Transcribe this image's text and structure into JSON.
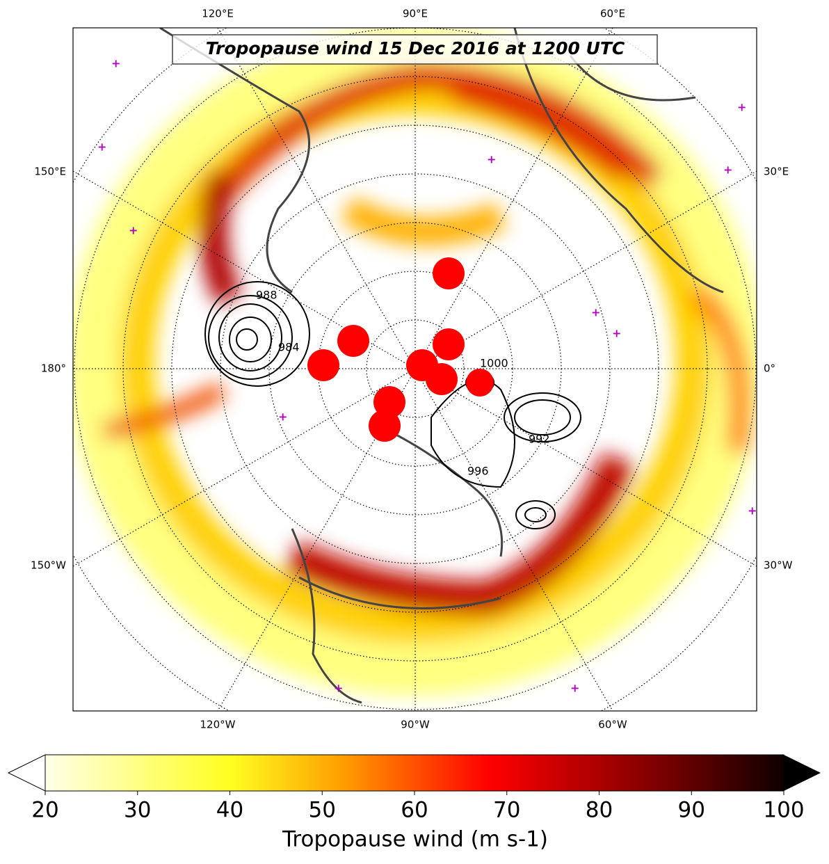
{
  "map": {
    "title": "Tropopause wind 15 Dec 2016 at 1200 UTC",
    "longitude_labels": {
      "top": [
        "120°E",
        "90°E",
        "60°E"
      ],
      "left": [
        "150°E",
        "180°",
        "150°W"
      ],
      "right": [
        "30°E",
        "0°",
        "30°W"
      ],
      "bottom": [
        "120°W",
        "90°W",
        "60°W"
      ]
    },
    "contour_labels": [
      "988",
      "1000",
      "984",
      "992",
      "996"
    ]
  },
  "colorbar": {
    "label": "Tropopause wind (m s-1)",
    "range": [
      20,
      100
    ],
    "ticks": [
      20,
      30,
      40,
      50,
      60,
      70,
      80,
      90,
      100
    ]
  }
}
